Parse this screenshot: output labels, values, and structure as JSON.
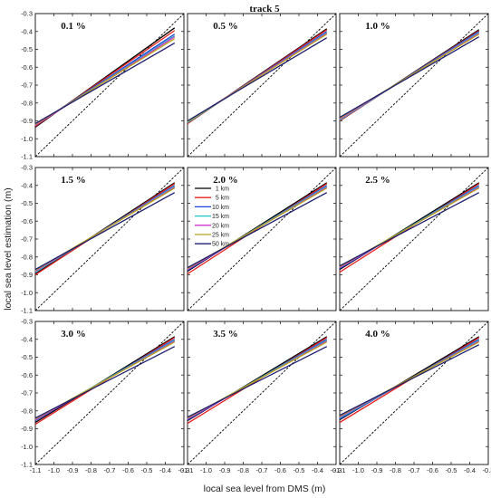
{
  "chart_data": {
    "type": "line",
    "title": "track 5",
    "xlabel": "local sea level from DMS (m)",
    "ylabel": "local sea level estimation (m)",
    "xlim": [
      -1.1,
      -0.3
    ],
    "ylim": [
      -1.1,
      -0.3
    ],
    "x_ticks": [
      "-1.1",
      "-1.0",
      "-0.9",
      "-0.8",
      "-0.7",
      "-0.6",
      "-0.5",
      "-0.4",
      "-0.3"
    ],
    "y_ticks": [
      "-0.3",
      "-0.4",
      "-0.5",
      "-0.6",
      "-0.7",
      "-0.8",
      "-0.9",
      "-1.0",
      "-1.1"
    ],
    "reference_line": {
      "style": "dashed",
      "color": "#000000",
      "points": [
        [
          -1.1,
          -1.1
        ],
        [
          -0.3,
          -0.3
        ]
      ]
    },
    "legend": {
      "location": "panel 5 (2.0 %), top-left",
      "entries": [
        "1 km",
        "5 km",
        "10 km",
        "15 km",
        "20 km",
        "25 km",
        "50 km"
      ]
    },
    "series_colors": [
      "#000000",
      "#e8201a",
      "#1f3fd8",
      "#19c9c0",
      "#d032d0",
      "#b5a41a",
      "#1c1c6e"
    ],
    "fit_x_range": [
      -1.1,
      -0.35
    ],
    "panels": [
      {
        "title": "0.1 %",
        "series": [
          {
            "name": "1 km",
            "x": [
              -1.1,
              -0.35
            ],
            "y": [
              -0.935,
              -0.38
            ]
          },
          {
            "name": "5 km",
            "x": [
              -1.1,
              -0.35
            ],
            "y": [
              -0.93,
              -0.395
            ]
          },
          {
            "name": "10 km",
            "x": [
              -1.1,
              -0.35
            ],
            "y": [
              -0.925,
              -0.415
            ]
          },
          {
            "name": "15 km",
            "x": [
              -1.1,
              -0.35
            ],
            "y": [
              -0.925,
              -0.425
            ]
          },
          {
            "name": "20 km",
            "x": [
              -1.1,
              -0.35
            ],
            "y": [
              -0.925,
              -0.43
            ]
          },
          {
            "name": "25 km",
            "x": [
              -1.1,
              -0.35
            ],
            "y": [
              -0.92,
              -0.44
            ]
          },
          {
            "name": "50 km",
            "x": [
              -1.1,
              -0.35
            ],
            "y": [
              -0.915,
              -0.465
            ]
          }
        ]
      },
      {
        "title": "0.5 %",
        "series": [
          {
            "name": "1 km",
            "x": [
              -1.1,
              -0.35
            ],
            "y": [
              -0.915,
              -0.385
            ]
          },
          {
            "name": "5 km",
            "x": [
              -1.1,
              -0.35
            ],
            "y": [
              -0.915,
              -0.39
            ]
          },
          {
            "name": "10 km",
            "x": [
              -1.1,
              -0.35
            ],
            "y": [
              -0.91,
              -0.4
            ]
          },
          {
            "name": "15 km",
            "x": [
              -1.1,
              -0.35
            ],
            "y": [
              -0.91,
              -0.405
            ]
          },
          {
            "name": "20 km",
            "x": [
              -1.1,
              -0.35
            ],
            "y": [
              -0.905,
              -0.41
            ]
          },
          {
            "name": "25 km",
            "x": [
              -1.1,
              -0.35
            ],
            "y": [
              -0.905,
              -0.415
            ]
          },
          {
            "name": "50 km",
            "x": [
              -1.1,
              -0.35
            ],
            "y": [
              -0.9,
              -0.435
            ]
          }
        ]
      },
      {
        "title": "1.0 %",
        "series": [
          {
            "name": "1 km",
            "x": [
              -1.1,
              -0.35
            ],
            "y": [
              -0.9,
              -0.39
            ]
          },
          {
            "name": "5 km",
            "x": [
              -1.1,
              -0.35
            ],
            "y": [
              -0.9,
              -0.395
            ]
          },
          {
            "name": "10 km",
            "x": [
              -1.1,
              -0.35
            ],
            "y": [
              -0.895,
              -0.4
            ]
          },
          {
            "name": "15 km",
            "x": [
              -1.1,
              -0.35
            ],
            "y": [
              -0.895,
              -0.405
            ]
          },
          {
            "name": "20 km",
            "x": [
              -1.1,
              -0.35
            ],
            "y": [
              -0.89,
              -0.41
            ]
          },
          {
            "name": "25 km",
            "x": [
              -1.1,
              -0.35
            ],
            "y": [
              -0.885,
              -0.415
            ]
          },
          {
            "name": "50 km",
            "x": [
              -1.1,
              -0.35
            ],
            "y": [
              -0.88,
              -0.43
            ]
          }
        ]
      },
      {
        "title": "1.5 %",
        "series": [
          {
            "name": "1 km",
            "x": [
              -1.1,
              -0.35
            ],
            "y": [
              -0.895,
              -0.385
            ]
          },
          {
            "name": "5 km",
            "x": [
              -1.1,
              -0.35
            ],
            "y": [
              -0.9,
              -0.39
            ]
          },
          {
            "name": "10 km",
            "x": [
              -1.1,
              -0.35
            ],
            "y": [
              -0.885,
              -0.4
            ]
          },
          {
            "name": "15 km",
            "x": [
              -1.1,
              -0.35
            ],
            "y": [
              -0.885,
              -0.405
            ]
          },
          {
            "name": "20 km",
            "x": [
              -1.1,
              -0.35
            ],
            "y": [
              -0.88,
              -0.41
            ]
          },
          {
            "name": "25 km",
            "x": [
              -1.1,
              -0.35
            ],
            "y": [
              -0.875,
              -0.415
            ]
          },
          {
            "name": "50 km",
            "x": [
              -1.1,
              -0.35
            ],
            "y": [
              -0.87,
              -0.44
            ]
          }
        ]
      },
      {
        "title": "2.0 %",
        "series": [
          {
            "name": "1 km",
            "x": [
              -1.1,
              -0.35
            ],
            "y": [
              -0.88,
              -0.385
            ]
          },
          {
            "name": "5 km",
            "x": [
              -1.1,
              -0.35
            ],
            "y": [
              -0.895,
              -0.39
            ]
          },
          {
            "name": "10 km",
            "x": [
              -1.1,
              -0.35
            ],
            "y": [
              -0.875,
              -0.4
            ]
          },
          {
            "name": "15 km",
            "x": [
              -1.1,
              -0.35
            ],
            "y": [
              -0.87,
              -0.405
            ]
          },
          {
            "name": "20 km",
            "x": [
              -1.1,
              -0.35
            ],
            "y": [
              -0.87,
              -0.41
            ]
          },
          {
            "name": "25 km",
            "x": [
              -1.1,
              -0.35
            ],
            "y": [
              -0.865,
              -0.415
            ]
          },
          {
            "name": "50 km",
            "x": [
              -1.1,
              -0.35
            ],
            "y": [
              -0.86,
              -0.44
            ]
          }
        ]
      },
      {
        "title": "2.5 %",
        "series": [
          {
            "name": "1 km",
            "x": [
              -1.1,
              -0.35
            ],
            "y": [
              -0.87,
              -0.385
            ]
          },
          {
            "name": "5 km",
            "x": [
              -1.1,
              -0.35
            ],
            "y": [
              -0.885,
              -0.39
            ]
          },
          {
            "name": "10 km",
            "x": [
              -1.1,
              -0.35
            ],
            "y": [
              -0.865,
              -0.4
            ]
          },
          {
            "name": "15 km",
            "x": [
              -1.1,
              -0.35
            ],
            "y": [
              -0.86,
              -0.405
            ]
          },
          {
            "name": "20 km",
            "x": [
              -1.1,
              -0.35
            ],
            "y": [
              -0.86,
              -0.41
            ]
          },
          {
            "name": "25 km",
            "x": [
              -1.1,
              -0.35
            ],
            "y": [
              -0.855,
              -0.415
            ]
          },
          {
            "name": "50 km",
            "x": [
              -1.1,
              -0.35
            ],
            "y": [
              -0.85,
              -0.44
            ]
          }
        ]
      },
      {
        "title": "3.0 %",
        "series": [
          {
            "name": "1 km",
            "x": [
              -1.1,
              -0.35
            ],
            "y": [
              -0.865,
              -0.385
            ]
          },
          {
            "name": "5 km",
            "x": [
              -1.1,
              -0.35
            ],
            "y": [
              -0.875,
              -0.39
            ]
          },
          {
            "name": "10 km",
            "x": [
              -1.1,
              -0.35
            ],
            "y": [
              -0.855,
              -0.4
            ]
          },
          {
            "name": "15 km",
            "x": [
              -1.1,
              -0.35
            ],
            "y": [
              -0.85,
              -0.405
            ]
          },
          {
            "name": "20 km",
            "x": [
              -1.1,
              -0.35
            ],
            "y": [
              -0.85,
              -0.41
            ]
          },
          {
            "name": "25 km",
            "x": [
              -1.1,
              -0.35
            ],
            "y": [
              -0.845,
              -0.415
            ]
          },
          {
            "name": "50 km",
            "x": [
              -1.1,
              -0.35
            ],
            "y": [
              -0.84,
              -0.44
            ]
          }
        ]
      },
      {
        "title": "3.5 %",
        "series": [
          {
            "name": "1 km",
            "x": [
              -1.1,
              -0.35
            ],
            "y": [
              -0.855,
              -0.385
            ]
          },
          {
            "name": "5 km",
            "x": [
              -1.1,
              -0.35
            ],
            "y": [
              -0.87,
              -0.39
            ]
          },
          {
            "name": "10 km",
            "x": [
              -1.1,
              -0.35
            ],
            "y": [
              -0.85,
              -0.4
            ]
          },
          {
            "name": "15 km",
            "x": [
              -1.1,
              -0.35
            ],
            "y": [
              -0.845,
              -0.405
            ]
          },
          {
            "name": "20 km",
            "x": [
              -1.1,
              -0.35
            ],
            "y": [
              -0.845,
              -0.41
            ]
          },
          {
            "name": "25 km",
            "x": [
              -1.1,
              -0.35
            ],
            "y": [
              -0.84,
              -0.415
            ]
          },
          {
            "name": "50 km",
            "x": [
              -1.1,
              -0.35
            ],
            "y": [
              -0.835,
              -0.44
            ]
          }
        ]
      },
      {
        "title": "4.0 %",
        "series": [
          {
            "name": "1 km",
            "x": [
              -1.1,
              -0.35
            ],
            "y": [
              -0.85,
              -0.385
            ]
          },
          {
            "name": "5 km",
            "x": [
              -1.1,
              -0.35
            ],
            "y": [
              -0.865,
              -0.39
            ]
          },
          {
            "name": "10 km",
            "x": [
              -1.1,
              -0.35
            ],
            "y": [
              -0.845,
              -0.4
            ]
          },
          {
            "name": "15 km",
            "x": [
              -1.1,
              -0.35
            ],
            "y": [
              -0.84,
              -0.405
            ]
          },
          {
            "name": "20 km",
            "x": [
              -1.1,
              -0.35
            ],
            "y": [
              -0.835,
              -0.41
            ]
          },
          {
            "name": "25 km",
            "x": [
              -1.1,
              -0.35
            ],
            "y": [
              -0.83,
              -0.415
            ]
          },
          {
            "name": "50 km",
            "x": [
              -1.1,
              -0.35
            ],
            "y": [
              -0.825,
              -0.43
            ]
          }
        ]
      }
    ]
  }
}
